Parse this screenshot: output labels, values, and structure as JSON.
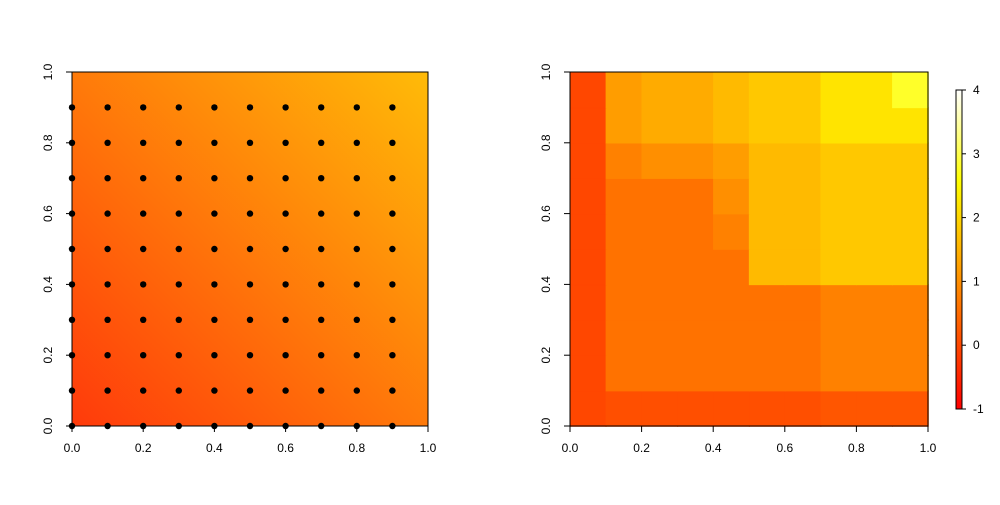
{
  "chart_data": [
    {
      "type": "scatter",
      "title": "",
      "xlabel": "",
      "ylabel": "",
      "xlim": [
        0.0,
        1.0
      ],
      "ylim": [
        0.0,
        1.0
      ],
      "xticks": [
        "0.0",
        "0.2",
        "0.4",
        "0.6",
        "0.8",
        "1.0"
      ],
      "yticks": [
        "0.0",
        "0.2",
        "0.4",
        "0.6",
        "0.8",
        "1.0"
      ],
      "background": {
        "description": "continuous color gradient increasing toward top-right",
        "color_low": "#ff3a0b",
        "color_high": "#ffbb08"
      },
      "points": {
        "x": [
          0.0,
          0.1,
          0.2,
          0.3,
          0.4,
          0.5,
          0.6,
          0.7,
          0.8,
          0.9
        ],
        "y": [
          0.0,
          0.1,
          0.2,
          0.3,
          0.4,
          0.5,
          0.6,
          0.7,
          0.8,
          0.9
        ],
        "layout": "grid (every x with every y)",
        "color": "#000000"
      }
    },
    {
      "type": "heatmap",
      "title": "",
      "xlabel": "",
      "ylabel": "",
      "xlim": [
        0.0,
        1.0
      ],
      "ylim": [
        0.0,
        1.0
      ],
      "xticks": [
        "0.0",
        "0.2",
        "0.4",
        "0.6",
        "0.8",
        "1.0"
      ],
      "yticks": [
        "0.0",
        "0.2",
        "0.4",
        "0.6",
        "0.8",
        "1.0"
      ],
      "x_edges": [
        0.0,
        0.1,
        0.2,
        0.3,
        0.4,
        0.5,
        0.6,
        0.7,
        0.8,
        0.9,
        1.0
      ],
      "y_edges": [
        0.0,
        0.1,
        0.2,
        0.3,
        0.4,
        0.5,
        0.6,
        0.7,
        0.8,
        0.9,
        1.0
      ],
      "values_rows_bottom_to_top": [
        [
          0.0,
          0.1,
          0.1,
          0.1,
          0.1,
          0.1,
          0.1,
          0.2,
          0.2,
          0.2
        ],
        [
          0.0,
          0.6,
          0.6,
          0.6,
          0.6,
          0.6,
          0.6,
          0.8,
          0.8,
          0.8
        ],
        [
          0.0,
          0.6,
          0.6,
          0.6,
          0.6,
          0.6,
          0.6,
          0.8,
          0.8,
          0.8
        ],
        [
          0.0,
          0.6,
          0.6,
          0.6,
          0.6,
          0.6,
          0.6,
          0.8,
          0.8,
          0.8
        ],
        [
          0.0,
          0.6,
          0.6,
          0.6,
          0.6,
          1.6,
          1.6,
          1.8,
          1.8,
          1.8
        ],
        [
          0.0,
          0.6,
          0.6,
          0.6,
          0.8,
          1.6,
          1.6,
          1.8,
          1.8,
          1.8
        ],
        [
          0.0,
          0.6,
          0.6,
          0.6,
          1.0,
          1.6,
          1.6,
          1.8,
          1.8,
          1.8
        ],
        [
          0.0,
          0.8,
          1.0,
          1.0,
          1.2,
          1.6,
          1.6,
          1.8,
          1.8,
          1.8
        ],
        [
          0.0,
          1.2,
          1.4,
          1.4,
          1.6,
          1.8,
          1.8,
          2.2,
          2.2,
          2.2
        ],
        [
          0.0,
          1.2,
          1.4,
          1.4,
          1.6,
          1.8,
          1.8,
          2.2,
          2.2,
          2.8
        ]
      ],
      "colorbar": {
        "range": [
          -1,
          4
        ],
        "ticks": [
          "-1",
          "0",
          "1",
          "2",
          "3",
          "4"
        ],
        "colors": [
          "#ff0000",
          "#ff3300",
          "#ff6600",
          "#ff9900",
          "#ffcc00",
          "#ffff00",
          "#ffff80",
          "#ffffff"
        ]
      }
    }
  ]
}
